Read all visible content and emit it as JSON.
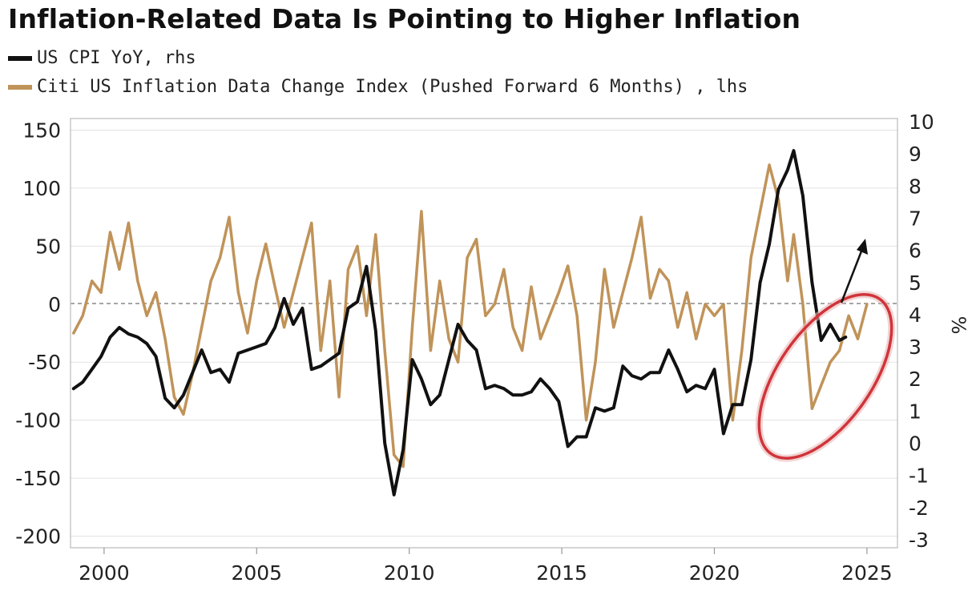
{
  "chart_data": {
    "type": "line",
    "title": "Inflation-Related Data Is Pointing to Higher Inflation",
    "series": [
      {
        "name": "US CPI YoY, rhs",
        "axis": "right",
        "color": "#111111",
        "x": [
          1999.0,
          1999.3,
          1999.6,
          1999.9,
          2000.2,
          2000.5,
          2000.8,
          2001.1,
          2001.4,
          2001.7,
          2002.0,
          2002.3,
          2002.6,
          2002.9,
          2003.2,
          2003.5,
          2003.8,
          2004.1,
          2004.4,
          2004.7,
          2005.0,
          2005.3,
          2005.6,
          2005.9,
          2006.2,
          2006.5,
          2006.8,
          2007.1,
          2007.4,
          2007.7,
          2008.0,
          2008.3,
          2008.6,
          2008.9,
          2009.2,
          2009.5,
          2009.8,
          2010.1,
          2010.4,
          2010.7,
          2011.0,
          2011.3,
          2011.6,
          2011.9,
          2012.2,
          2012.5,
          2012.8,
          2013.1,
          2013.4,
          2013.7,
          2014.0,
          2014.3,
          2014.6,
          2014.9,
          2015.2,
          2015.5,
          2015.8,
          2016.1,
          2016.4,
          2016.7,
          2017.0,
          2017.3,
          2017.6,
          2017.9,
          2018.2,
          2018.5,
          2018.8,
          2019.1,
          2019.4,
          2019.7,
          2020.0,
          2020.3,
          2020.6,
          2020.9,
          2021.2,
          2021.5,
          2021.8,
          2022.1,
          2022.4,
          2022.6,
          2022.9,
          2023.2,
          2023.5,
          2023.8,
          2024.1,
          2024.3
        ],
        "values": [
          1.7,
          1.9,
          2.3,
          2.7,
          3.3,
          3.6,
          3.4,
          3.3,
          3.1,
          2.7,
          1.4,
          1.1,
          1.5,
          2.2,
          2.9,
          2.2,
          2.3,
          1.9,
          2.8,
          2.9,
          3.0,
          3.1,
          3.6,
          4.5,
          3.7,
          4.2,
          2.3,
          2.4,
          2.6,
          2.8,
          4.2,
          4.4,
          5.5,
          3.5,
          0.0,
          -1.6,
          -0.2,
          2.6,
          2.0,
          1.2,
          1.5,
          2.6,
          3.7,
          3.2,
          2.9,
          1.7,
          1.8,
          1.7,
          1.5,
          1.5,
          1.6,
          2.0,
          1.7,
          1.3,
          -0.1,
          0.2,
          0.2,
          1.1,
          1.0,
          1.1,
          2.4,
          2.1,
          2.0,
          2.2,
          2.2,
          2.9,
          2.3,
          1.6,
          1.8,
          1.7,
          2.3,
          0.3,
          1.2,
          1.2,
          2.6,
          5.0,
          6.2,
          7.9,
          8.5,
          9.1,
          7.7,
          5.0,
          3.2,
          3.7,
          3.2,
          3.3
        ]
      },
      {
        "name": "Citi US Inflation Data Change Index (Pushed Forward 6 Months) , lhs",
        "axis": "left",
        "color": "#c09359",
        "x": [
          1999.0,
          1999.3,
          1999.6,
          1999.9,
          2000.2,
          2000.5,
          2000.8,
          2001.1,
          2001.4,
          2001.7,
          2002.0,
          2002.3,
          2002.6,
          2002.9,
          2003.2,
          2003.5,
          2003.8,
          2004.1,
          2004.4,
          2004.7,
          2005.0,
          2005.3,
          2005.6,
          2005.9,
          2006.2,
          2006.5,
          2006.8,
          2007.1,
          2007.4,
          2007.7,
          2008.0,
          2008.3,
          2008.6,
          2008.9,
          2009.2,
          2009.5,
          2009.8,
          2010.1,
          2010.4,
          2010.7,
          2011.0,
          2011.3,
          2011.6,
          2011.9,
          2012.2,
          2012.5,
          2012.8,
          2013.1,
          2013.4,
          2013.7,
          2014.0,
          2014.3,
          2014.6,
          2014.9,
          2015.2,
          2015.5,
          2015.8,
          2016.1,
          2016.4,
          2016.7,
          2017.0,
          2017.3,
          2017.6,
          2017.9,
          2018.2,
          2018.5,
          2018.8,
          2019.1,
          2019.4,
          2019.7,
          2020.0,
          2020.3,
          2020.6,
          2020.9,
          2021.2,
          2021.5,
          2021.8,
          2022.1,
          2022.4,
          2022.6,
          2022.9,
          2023.2,
          2023.5,
          2023.8,
          2024.1,
          2024.4,
          2024.7,
          2025.0
        ],
        "values": [
          -25,
          -10,
          20,
          10,
          62,
          30,
          70,
          20,
          -10,
          10,
          -30,
          -80,
          -95,
          -60,
          -20,
          20,
          40,
          75,
          10,
          -25,
          20,
          52,
          15,
          -20,
          10,
          40,
          70,
          -40,
          20,
          -80,
          30,
          50,
          -10,
          60,
          -40,
          -130,
          -140,
          -20,
          80,
          -40,
          20,
          -30,
          -50,
          40,
          56,
          -10,
          0,
          30,
          -20,
          -40,
          15,
          -30,
          -10,
          10,
          33,
          -10,
          -100,
          -50,
          30,
          -20,
          10,
          40,
          75,
          5,
          30,
          20,
          -20,
          10,
          -30,
          0,
          -10,
          0,
          -100,
          -40,
          40,
          80,
          120,
          90,
          20,
          60,
          0,
          -90,
          -70,
          -50,
          -40,
          -10,
          -30,
          0
        ]
      }
    ],
    "left_axis": {
      "ylim": [
        -210,
        160
      ],
      "ticks": [
        "150",
        "100",
        "50",
        "0",
        "-50",
        "-100",
        "-150",
        "-200"
      ]
    },
    "right_axis": {
      "ylim": [
        -3.25,
        10.1
      ],
      "ticks": [
        "10",
        "9",
        "8",
        "7",
        "6",
        "5",
        "4",
        "3",
        "2",
        "1",
        "0",
        "-1",
        "-2",
        "-3"
      ],
      "label": "%"
    },
    "x_axis": {
      "xlim": [
        1998.9,
        2026.0
      ],
      "ticks": [
        "2000",
        "2005",
        "2010",
        "2015",
        "2020",
        "2025"
      ]
    },
    "grid": true,
    "zero_line": "dashed",
    "legend_placement": "top-left",
    "annotations": [
      "red ellipse highlighting 2023–2025 trough",
      "arrow pointing up-right"
    ]
  }
}
